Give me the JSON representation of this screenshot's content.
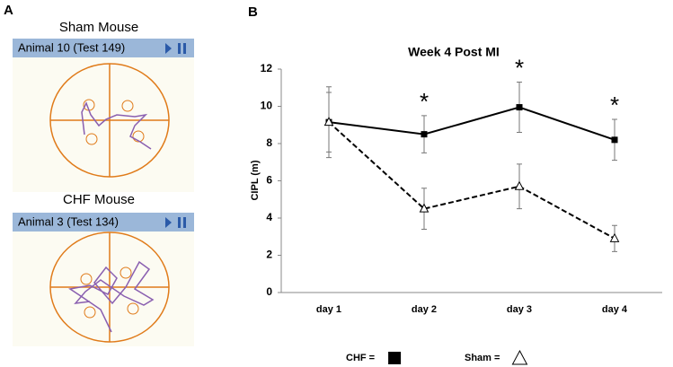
{
  "panel_a": {
    "label": "A",
    "top": {
      "title": "Sham Mouse",
      "header": "Animal 10 (Test 149)"
    },
    "bottom": {
      "title": "CHF Mouse",
      "header": "Animal 3 (Test 134)"
    }
  },
  "chart_data": {
    "type": "line",
    "panel_label": "B",
    "title": "Week 4 Post MI",
    "y_label": "CIPL (m)",
    "categories": [
      "day 1",
      "day 2",
      "day 3",
      "day 4"
    ],
    "series": [
      {
        "name": "CHF =",
        "color": "#000000",
        "marker": "square",
        "dashed": false,
        "values": [
          9.15,
          8.5,
          9.95,
          8.2
        ],
        "errors": [
          1.9,
          1.0,
          1.35,
          1.1
        ]
      },
      {
        "name": "Sham =",
        "color": "#000000",
        "marker": "triangle",
        "dashed": true,
        "values": [
          9.15,
          4.5,
          5.7,
          2.9
        ],
        "errors": [
          1.6,
          1.1,
          1.2,
          0.7
        ]
      }
    ],
    "significance_markers": [
      null,
      "*",
      "*",
      "*"
    ],
    "ylim": [
      0,
      12
    ],
    "yticks": [
      0,
      2,
      4,
      6,
      8,
      10,
      12
    ],
    "grid": false
  }
}
